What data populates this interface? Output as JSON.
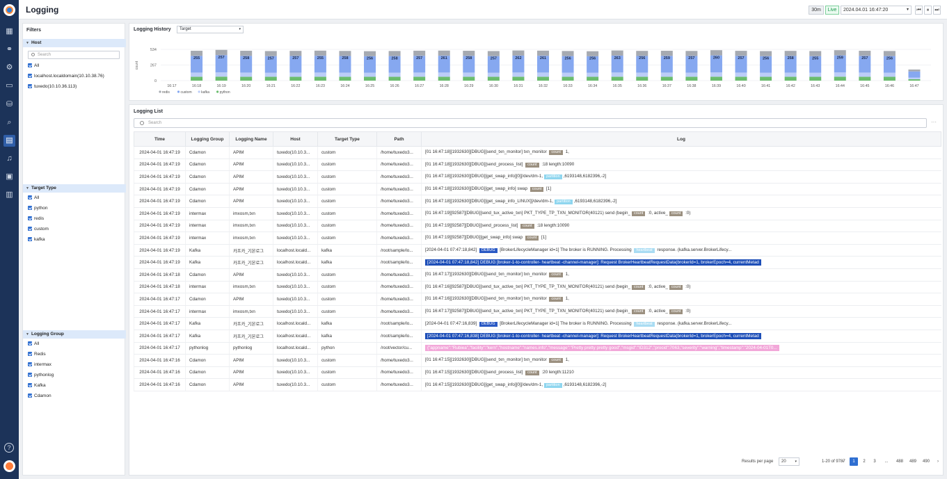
{
  "app": {
    "title": "Logging"
  },
  "topbar": {
    "range": "30m",
    "live": "Live",
    "datetime": "2024.04.01 16:47:20",
    "dropdown_icon": "chevron-down-icon",
    "prev": "⏮",
    "pause": "⏸",
    "next": "⏭"
  },
  "filters": {
    "title": "Filters",
    "host": {
      "title": "Host",
      "search_placeholder": "Search",
      "items": [
        "All",
        "localhost.localdomain(10.10.38.76)",
        "tuxedo(10.10.36.113)"
      ]
    },
    "target_type": {
      "title": "Target Type",
      "items": [
        "All",
        "python",
        "redis",
        "custom",
        "kafka"
      ]
    },
    "logging_group": {
      "title": "Logging Group",
      "items": [
        "All",
        "Redis",
        "intermax",
        "pythonlog",
        "Kafka",
        "Cdamon"
      ]
    }
  },
  "history": {
    "title": "Logging History",
    "select": "Target"
  },
  "chart_data": {
    "type": "bar",
    "stacked": true,
    "categories": [
      "16:17",
      "16:18",
      "16:19",
      "16:20",
      "16:21",
      "16:22",
      "16:23",
      "16:24",
      "16:25",
      "16:26",
      "16:27",
      "16:28",
      "16:29",
      "16:30",
      "16:31",
      "16:32",
      "16:33",
      "16:34",
      "16:35",
      "16:36",
      "16:37",
      "16:38",
      "16:39",
      "16:40",
      "16:41",
      "16:42",
      "16:43",
      "16:44",
      "16:45",
      "16:46",
      "16:47"
    ],
    "y_ticks": [
      "534",
      "267",
      "0"
    ],
    "ylabel": "count",
    "ylim": [
      0,
      534
    ],
    "totals": [
      0,
      510,
      525,
      510,
      505,
      508,
      512,
      507,
      503,
      506,
      511,
      513,
      510,
      505,
      515,
      512,
      506,
      502,
      515,
      508,
      510,
      507,
      520,
      509,
      504,
      508,
      505,
      520,
      510,
      506,
      190
    ],
    "labels": [
      "",
      "255",
      "257",
      "258",
      "257",
      "257",
      "255",
      "258",
      "256",
      "258",
      "257",
      "261",
      "258",
      "257",
      "262",
      "261",
      "256",
      "256",
      "263",
      "256",
      "259",
      "257",
      "260",
      "257",
      "256",
      "258",
      "255",
      "259",
      "257",
      "256",
      ""
    ],
    "series": [
      {
        "name": "redis",
        "color": "#a6aab1"
      },
      {
        "name": "custom",
        "color": "#86a8f0"
      },
      {
        "name": "kafka",
        "color": "#bccdf8"
      },
      {
        "name": "python",
        "color": "#6bbd6e"
      }
    ],
    "legend_position": "bottom-left",
    "grid": true
  },
  "list": {
    "title": "Logging List",
    "search_placeholder": "Search",
    "more": "···",
    "columns": [
      "Time",
      "Logging Group",
      "Logging Name",
      "Host",
      "Target Type",
      "Path",
      "Log"
    ],
    "rows": [
      {
        "time": "2024-04-01 16:47:19",
        "group": "Cdamon",
        "name": "APIM",
        "host": "tuxedo(10.10.3...",
        "type": "custom",
        "path": "/home/tuxedo3...",
        "log": [
          {
            "t": "[01 16:47:18][1932630][DBUG][send_txn_monitor] txn_monitor "
          },
          {
            "tag": "count"
          },
          {
            "t": " 1,"
          }
        ]
      },
      {
        "time": "2024-04-01 16:47:19",
        "group": "Cdamon",
        "name": "APIM",
        "host": "tuxedo(10.10.3...",
        "type": "custom",
        "path": "/home/tuxedo3...",
        "log": [
          {
            "t": "[01 16:47:18][1932630][DBUG][send_process_list] "
          },
          {
            "tag": "count"
          },
          {
            "t": " :18 length:10090"
          }
        ]
      },
      {
        "time": "2024-04-01 16:47:19",
        "group": "Cdamon",
        "name": "APIM",
        "host": "tuxedo(10.10.3...",
        "type": "custom",
        "path": "/home/tuxedo3...",
        "log": [
          {
            "t": "[01 16:47:18][1932630][DBUG][get_swap_info][0][/dev/dm-1,"
          },
          {
            "tag": "partition",
            "cls": "pt"
          },
          {
            "t": ",6193148,6182396,-2]"
          }
        ]
      },
      {
        "time": "2024-04-01 16:47:19",
        "group": "Cdamon",
        "name": "APIM",
        "host": "tuxedo(10.10.3...",
        "type": "custom",
        "path": "/home/tuxedo3...",
        "log": [
          {
            "t": "[01 16:47:18][1932630][DBUG][get_swap_info] swap "
          },
          {
            "tag": "count"
          },
          {
            "t": " [1]"
          }
        ]
      },
      {
        "time": "2024-04-01 16:47:19",
        "group": "Cdamon",
        "name": "APIM",
        "host": "tuxedo(10.10.3...",
        "type": "custom",
        "path": "/home/tuxedo3...",
        "log": [
          {
            "t": "[01 16:47:18][1932630][DBUG][get_swap_info_LINUX][/dev/dm-1,"
          },
          {
            "tag": "partition",
            "cls": "pt"
          },
          {
            "t": ",6193148,6182396,-2]"
          }
        ]
      },
      {
        "time": "2024-04-01 16:47:19",
        "group": "intermax",
        "name": "imxosm,txn",
        "host": "tuxedo(10.10.3...",
        "type": "custom",
        "path": "/home/tuxedo3...",
        "log": [
          {
            "t": "[01 16:47:19][92587][DBUG][send_tux_active_txn] PKT_TYPE_TP_TXN_MONITOR(40121) send (begin_"
          },
          {
            "tag": "count"
          },
          {
            "t": " :0, active_"
          },
          {
            "tag": "count"
          },
          {
            "t": " :0)"
          }
        ]
      },
      {
        "time": "2024-04-01 16:47:19",
        "group": "intermax",
        "name": "imxosm,txn",
        "host": "tuxedo(10.10.3...",
        "type": "custom",
        "path": "/home/tuxedo3...",
        "log": [
          {
            "t": "[01 16:47:19][92587][DBUG][send_process_list] "
          },
          {
            "tag": "count"
          },
          {
            "t": " :18 length:10090"
          }
        ]
      },
      {
        "time": "2024-04-01 16:47:19",
        "group": "intermax",
        "name": "imxosm,txn",
        "host": "tuxedo(10.10.3...",
        "type": "custom",
        "path": "/home/tuxedo3...",
        "log": [
          {
            "t": "[01 16:47:19][92587][DBUG][get_swap_info] swap "
          },
          {
            "tag": "count"
          },
          {
            "t": " [1]"
          }
        ]
      },
      {
        "time": "2024-04-01 16:47:19",
        "group": "Kafka",
        "name": "카프카_기본로그",
        "host": "localhost.locald...",
        "type": "kafka",
        "path": "/root/sample/lo...",
        "log": [
          {
            "t": "[2024-04-01 07:47:18,842] "
          },
          {
            "tag": "DEBUG",
            "cls": "db"
          },
          {
            "t": " [BrokerLifecycleManager id=1] The broker is RUNNING. Processing "
          },
          {
            "tag": "heartbeat",
            "cls": "hb"
          },
          {
            "t": " response. (kafka.server.BrokerLifecy..."
          }
        ]
      },
      {
        "time": "2024-04-01 16:47:19",
        "group": "Kafka",
        "name": "카프카_기본로그",
        "host": "localhost.locald...",
        "type": "kafka",
        "path": "/root/sample/lo...",
        "log": [
          {
            "blue": "[2024-04-01 07:47:18,842]   DEBUG   [broker-1-to-controller-   heartbeat   -channel-manager]: Request BrokerHeartbeatRequestData(brokerId=1, brokerEpoch=4, currentMetad"
          }
        ]
      },
      {
        "time": "2024-04-01 16:47:18",
        "group": "Cdamon",
        "name": "APIM",
        "host": "tuxedo(10.10.3...",
        "type": "custom",
        "path": "/home/tuxedo3...",
        "log": [
          {
            "t": "[01 16:47:17][1932630][DBUG][send_txn_monitor] txn_monitor "
          },
          {
            "tag": "count"
          },
          {
            "t": " 1,"
          }
        ]
      },
      {
        "time": "2024-04-01 16:47:18",
        "group": "intermax",
        "name": "imxosm,txn",
        "host": "tuxedo(10.10.3...",
        "type": "custom",
        "path": "/home/tuxedo3...",
        "log": [
          {
            "t": "[01 16:47:16][92587][DBUG][send_tux_active_txn] PKT_TYPE_TP_TXN_MONITOR(40121) send (begin_"
          },
          {
            "tag": "count"
          },
          {
            "t": " :0, active_"
          },
          {
            "tag": "count"
          },
          {
            "t": " :0)"
          }
        ]
      },
      {
        "time": "2024-04-01 16:47:17",
        "group": "Cdamon",
        "name": "APIM",
        "host": "tuxedo(10.10.3...",
        "type": "custom",
        "path": "/home/tuxedo3...",
        "log": [
          {
            "t": "[01 16:47:16][1932630][DBUG][send_txn_monitor] txn_monitor "
          },
          {
            "tag": "count"
          },
          {
            "t": " 1,"
          }
        ]
      },
      {
        "time": "2024-04-01 16:47:17",
        "group": "intermax",
        "name": "imxosm,txn",
        "host": "tuxedo(10.10.3...",
        "type": "custom",
        "path": "/home/tuxedo3...",
        "log": [
          {
            "t": "[01 16:47:17][92587][DBUG][send_tux_active_txn] PKT_TYPE_TP_TXN_MONITOR(40121) send (begin_"
          },
          {
            "tag": "count"
          },
          {
            "t": " :0, active_"
          },
          {
            "tag": "count"
          },
          {
            "t": " :0)"
          }
        ]
      },
      {
        "time": "2024-04-01 16:47:17",
        "group": "Kafka",
        "name": "카프카_기본로그",
        "host": "localhost.locald...",
        "type": "kafka",
        "path": "/root/sample/lo...",
        "log": [
          {
            "t": "[2024-04-01 07:47:16,839] "
          },
          {
            "tag": "DEBUG",
            "cls": "db"
          },
          {
            "t": " [BrokerLifecycleManager id=1] The broker is RUNNING. Processing "
          },
          {
            "tag": "heartbeat",
            "cls": "hb"
          },
          {
            "t": " response. (kafka.server.BrokerLifecy..."
          }
        ]
      },
      {
        "time": "2024-04-01 16:47:17",
        "group": "Kafka",
        "name": "카프카_기본로그",
        "host": "localhost.locald...",
        "type": "kafka",
        "path": "/root/sample/lo...",
        "log": [
          {
            "blue": "[2024-04-01 07:47:16,838]   DEBUG   [broker-1-to-controller-   heartbeat   -channel-manager]: Request BrokerHeartbeatRequestData(brokerId=1, brokerEpoch=4, currentMetad"
          }
        ]
      },
      {
        "time": "2024-04-01 16:47:17",
        "group": "pythonlog",
        "name": "pythonlog",
        "host": "localhost.locald...",
        "type": "python",
        "path": "/root/vector/cu...",
        "log": [
          {
            "pink": "{\"appname\":\"Rubiea\",\"facility\":\"kern\",\"hostname\":\"names.info\",\"message\":\"Pretty pretty pretty good\",\"msgid\":\"ID312\",\"procid\":7063,\"severity\":\"warning\",\"timestamp\":\"2024-04-01T0..."
          }
        ]
      },
      {
        "time": "2024-04-01 16:47:16",
        "group": "Cdamon",
        "name": "APIM",
        "host": "tuxedo(10.10.3...",
        "type": "custom",
        "path": "/home/tuxedo3...",
        "log": [
          {
            "t": "[01 16:47:15][1932630][DBUG][send_txn_monitor] txn_monitor "
          },
          {
            "tag": "count"
          },
          {
            "t": " 1,"
          }
        ]
      },
      {
        "time": "2024-04-01 16:47:16",
        "group": "Cdamon",
        "name": "APIM",
        "host": "tuxedo(10.10.3...",
        "type": "custom",
        "path": "/home/tuxedo3...",
        "log": [
          {
            "t": "[01 16:47:15][1932630][DBUG][send_process_list] "
          },
          {
            "tag": "count"
          },
          {
            "t": " :20 length:11210"
          }
        ]
      },
      {
        "time": "2024-04-01 16:47:16",
        "group": "Cdamon",
        "name": "APIM",
        "host": "tuxedo(10.10.3...",
        "type": "custom",
        "path": "/home/tuxedo3...",
        "log": [
          {
            "t": "[01 16:47:15][1932630][DBUG][get_swap_info][0][/dev/dm-1,"
          },
          {
            "tag": "partition",
            "cls": "pt"
          },
          {
            "t": ",6193148,6182396,-2]"
          }
        ]
      }
    ]
  },
  "pagination": {
    "rows_per_page_label": "Results per page",
    "rows_per_page": "20",
    "range": "1-20 of 9787",
    "prev": "‹",
    "pages": [
      "1",
      "2",
      "3",
      "...",
      "488",
      "489",
      "490"
    ],
    "next": "›",
    "current": "1"
  }
}
